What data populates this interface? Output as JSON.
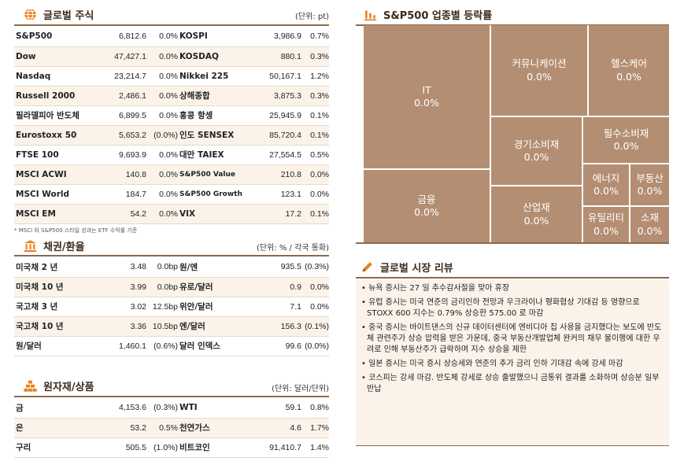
{
  "global_stocks": {
    "title": "글로벌 주식",
    "unit": "(단위: pt)",
    "icon": "globe-icon",
    "rows": [
      {
        "n1": "S&P500",
        "v1": "6,812.6",
        "c1": "0.0%",
        "n2": "KOSPI",
        "v2": "3,986.9",
        "c2": "0.7%"
      },
      {
        "n1": "Dow",
        "v1": "47,427.1",
        "c1": "0.0%",
        "n2": "KOSDAQ",
        "v2": "880.1",
        "c2": "0.3%"
      },
      {
        "n1": "Nasdaq",
        "v1": "23,214.7",
        "c1": "0.0%",
        "n2": "Nikkei 225",
        "v2": "50,167.1",
        "c2": "1.2%"
      },
      {
        "n1": "Russell 2000",
        "v1": "2,486.1",
        "c1": "0.0%",
        "n2": "상해종합",
        "v2": "3,875.3",
        "c2": "0.3%"
      },
      {
        "n1": "필라델피아 반도체",
        "v1": "6,899.5",
        "c1": "0.0%",
        "n2": "홍콩 항셍",
        "v2": "25,945.9",
        "c2": "0.1%"
      },
      {
        "n1": "Eurostoxx 50",
        "v1": "5,653.2",
        "c1": "(0.0%)",
        "n2": "인도 SENSEX",
        "v2": "85,720.4",
        "c2": "0.1%"
      },
      {
        "n1": "FTSE 100",
        "v1": "9,693.9",
        "c1": "0.0%",
        "n2": "대만 TAIEX",
        "v2": "27,554.5",
        "c2": "0.5%"
      },
      {
        "n1": "MSCI ACWI",
        "v1": "140.8",
        "c1": "0.0%",
        "n2": "S&P500 Value",
        "v2": "210.8",
        "c2": "0.0%"
      },
      {
        "n1": "MSCI World",
        "v1": "184.7",
        "c1": "0.0%",
        "n2": "S&P500 Growth",
        "v2": "123.1",
        "c2": "0.0%"
      },
      {
        "n1": "MSCI EM",
        "v1": "54.2",
        "c1": "0.0%",
        "n2": "VIX",
        "v2": "17.2",
        "c2": "0.1%"
      }
    ],
    "note": "* MSCI 와 S&P500 스타일 성과는 ETF 수익률 기준"
  },
  "bonds_fx": {
    "title": "채권/환율",
    "unit": "(단위: % / 각국 통화)",
    "icon": "bank-icon",
    "rows": [
      {
        "n1": "미국채 2 년",
        "v1": "3.48",
        "c1": "0.0bp",
        "n2": "원/엔",
        "v2": "935.5",
        "c2": "(0.3%)"
      },
      {
        "n1": "미국채 10 년",
        "v1": "3.99",
        "c1": "0.0bp",
        "n2": "유로/달러",
        "v2": "0.9",
        "c2": "0.0%"
      },
      {
        "n1": "국고채 3 년",
        "v1": "3.02",
        "c1": "12.5bp",
        "n2": "위안/달러",
        "v2": "7.1",
        "c2": "0.0%"
      },
      {
        "n1": "국고채 10 년",
        "v1": "3.36",
        "c1": "10.5bp",
        "n2": "엔/달러",
        "v2": "156.3",
        "c2": "(0.1%)"
      },
      {
        "n1": "원/달러",
        "v1": "1,460.1",
        "c1": "(0.6%)",
        "n2": "달러 인덱스",
        "v2": "99.6",
        "c2": "(0.0%)"
      }
    ]
  },
  "commodities": {
    "title": "원자재/상품",
    "unit": "(단위: 달러/단위)",
    "icon": "gold-bars-icon",
    "rows": [
      {
        "n1": "금",
        "v1": "4,153.6",
        "c1": "(0.3%)",
        "n2": "WTI",
        "v2": "59.1",
        "c2": "0.8%"
      },
      {
        "n1": "은",
        "v1": "53.2",
        "c1": "0.5%",
        "n2": "천연가스",
        "v2": "4.6",
        "c2": "1.7%"
      },
      {
        "n1": "구리",
        "v1": "505.5",
        "c1": "(1.0%)",
        "n2": "비트코인",
        "v2": "91,410.7",
        "c2": "1.4%"
      }
    ]
  },
  "sector": {
    "title": "S&P500 업종별 등락률",
    "icon": "bar-chart-icon",
    "tile_color": "#b48e72"
  },
  "chart_data": {
    "type": "treemap",
    "title": "S&P500 업종별 등락률",
    "categories": [
      "IT",
      "금융",
      "커뮤니케이션",
      "헬스케어",
      "경기소비재",
      "필수소비재",
      "산업재",
      "에너지",
      "부동산",
      "유틸리티",
      "소재"
    ],
    "values": [
      0.0,
      0.0,
      0.0,
      0.0,
      0.0,
      0.0,
      0.0,
      0.0,
      0.0,
      0.0,
      0.0
    ],
    "labels": [
      "0.0%",
      "0.0%",
      "0.0%",
      "0.0%",
      "0.0%",
      "0.0%",
      "0.0%",
      "0.0%",
      "0.0%",
      "0.0%",
      "0.0%"
    ]
  },
  "review": {
    "title": "글로벌 시장 리뷰",
    "icon": "pencil-icon",
    "items": [
      "뉴욕 증시는 27 일 추수감사절을 맞아 휴장",
      "유럽 증시는 미국 연준의 금리인하 전망과 우크라이나 평화협상 기대감 등 영향으로 STOXX 600 지수는 0.79% 상승한 575.00 로 마감",
      "중국 증시는 바이트댄스의 신규 데이터센터에 엔비디아 칩 사용을 금지했다는 보도에 반도체 관련주가 상승 압력을 받은 가운데, 중국 부동산개발업체 완커의 채무 불이행에 대한 우려로 인해 부동산주가 급락하며 지수 상승을 제한",
      "일본 증시는 미국 증시 상승세와 연준의 추가 금리 인하 기대감 속에 강세 마감",
      "코스피는 강세 마감. 반도체 강세로 상승 출발했으니 금통위 결과를 소화하며 상승분 일부 반납"
    ]
  }
}
